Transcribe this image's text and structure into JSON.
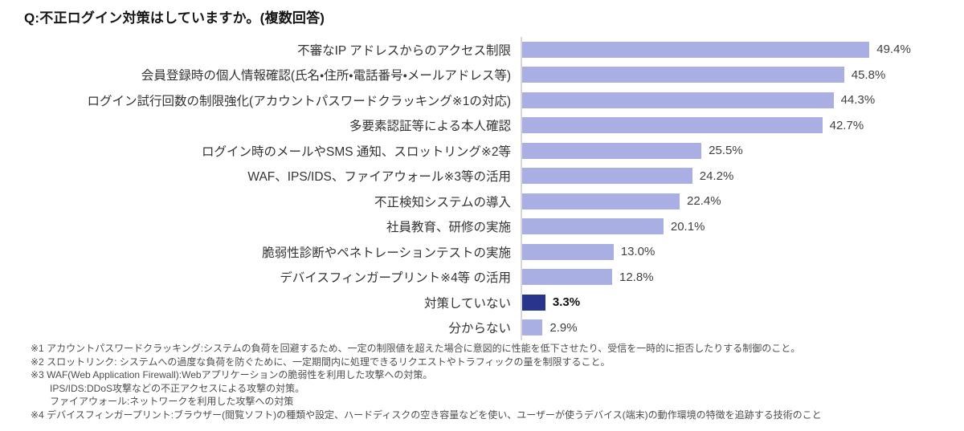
{
  "title": "Q:不正ログイン対策はしていますか。(複数回答)",
  "chart_data": {
    "type": "bar",
    "orientation": "horizontal",
    "title": "Q:不正ログイン対策はしていますか。(複数回答)",
    "categories": [
      "不審なIP アドレスからのアクセス制限",
      "会員登録時の個人情報確認(氏名・住所・電話番号・メールアドレス等)",
      "ログイン試行回数の制限強化(アカウントパスワードクラッキング※1の対応)",
      "多要素認証等による本人確認",
      "ログイン時のメールやSMS 通知、スロットリング※2等",
      "WAF、IPS/IDS、ファイアウォール※3等の活用",
      "不正検知システムの導入",
      "社員教育、研修の実施",
      "脆弱性診断やペネトレーションテストの実施",
      "デバイスフィンガープリント※4等 の活用",
      "対策していない",
      "分からない"
    ],
    "values": [
      49.4,
      45.8,
      44.3,
      42.7,
      25.5,
      24.2,
      22.4,
      20.1,
      13.0,
      12.8,
      3.3,
      2.9
    ],
    "value_labels": [
      "49.4%",
      "45.8%",
      "44.3%",
      "42.7%",
      "25.5%",
      "24.2%",
      "22.4%",
      "20.1%",
      "13.0%",
      "12.8%",
      "3.3%",
      "2.9%"
    ],
    "xlabel": "",
    "ylabel": "",
    "xlim": [
      0,
      55
    ],
    "grid": false,
    "legend": "none",
    "bar_color": "#a9aee3",
    "emphasis": {
      "index": 10,
      "category": "対策していない",
      "bar_color": "#28358c",
      "bold_value_label": true
    }
  },
  "footnotes": [
    {
      "indent": false,
      "text": "※1 アカウントパスワードクラッキング:システムの負荷を回避するため、一定の制限値を超えた場合に意図的に性能を低下させたり、受信を一時的に拒否したりする制御のこと。"
    },
    {
      "indent": false,
      "text": "※2 スロットリンク: システムへの過度な負荷を防ぐために、一定期間内に処理できるリクエストやトラフィックの量を制限すること。"
    },
    {
      "indent": false,
      "text": "※3 WAF(Web Application Firewall):Webアプリケーションの脆弱性を利用した攻撃への対策。"
    },
    {
      "indent": true,
      "text": "IPS/IDS:DDoS攻撃などの不正アクセスによる攻撃の対策。"
    },
    {
      "indent": true,
      "text": "ファイアウォール:ネットワークを利用した攻撃への対策"
    },
    {
      "indent": false,
      "text": "※4 デバイスフィンガープリント:ブラウザー(閲覧ソフト)の種類や設定、ハードディスクの空き容量などを使い、ユーザーが使うデバイス(端末)の動作環境の特徴を追跡する技術のこと"
    }
  ],
  "colors": {
    "bar_light": "#a9aee3",
    "bar_dark": "#28358c",
    "axis_line": "#d6d6d9",
    "text": "#333333",
    "background": "#ffffff"
  }
}
